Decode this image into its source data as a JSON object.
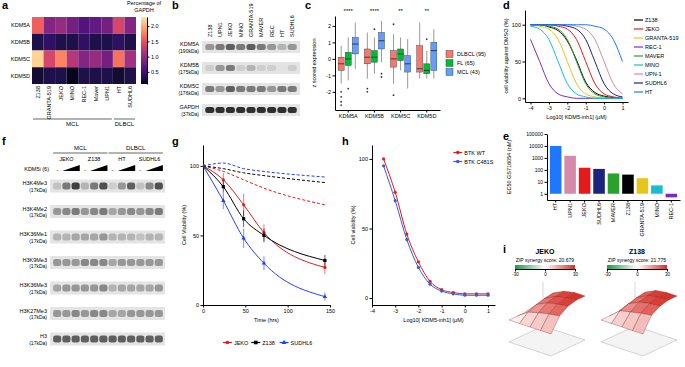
{
  "chart_data": [
    {
      "type": "heatmap",
      "panel": "a",
      "categories": [
        "Z138",
        "GRANTA-519",
        "JEKO",
        "MINO",
        "REC-1",
        "Maver",
        "UPN1",
        "HT",
        "SUDHL6"
      ],
      "rows": [
        "KDM5A",
        "KDM5B",
        "KDM5C",
        "KDM5D"
      ],
      "values": [
        [
          1.6,
          0.9,
          1.0,
          0.8,
          0.6,
          0.7,
          0.8,
          1.4,
          0.9
        ],
        [
          0.3,
          0.4,
          0.3,
          0.3,
          0.4,
          0.3,
          0.3,
          0.4,
          0.3
        ],
        [
          2.2,
          1.4,
          1.8,
          1.2,
          0.9,
          1.0,
          0.8,
          1.7,
          1.1
        ],
        [
          0.2,
          0.3,
          0.3,
          0.1,
          0.3,
          0.3,
          0.3,
          0.2,
          0.3
        ]
      ],
      "groups": [
        {
          "label": "MCL",
          "count": 7
        },
        {
          "label": "DLBCL",
          "count": 2
        }
      ],
      "colorbar": {
        "title": "Percentage of GAPDH",
        "range": [
          0.1,
          2.3
        ],
        "ticks": [
          0.5,
          {
            "value": 1,
            "label": "1.0"
          },
          1.5,
          {
            "value": 2,
            "label": "2.0"
          }
        ]
      }
    },
    {
      "type": "blot",
      "panel": "b",
      "categories": [
        "Z138",
        "UPN1",
        "JEKO",
        "MINO",
        "GRANTA-519",
        "MAVER",
        "REC",
        "HT",
        "SUDHL6"
      ],
      "series": [
        {
          "name": "KDM5A",
          "mw": "(190kDa)",
          "values": [
            0.5,
            0.6,
            0.7,
            0.6,
            0.7,
            0.6,
            0.5,
            0.4,
            0.5
          ]
        },
        {
          "name": "KDM5B",
          "mw": "(175kDa)",
          "values": [
            0.3,
            0.5,
            0.6,
            0.3,
            0.4,
            0.3,
            0.3,
            0.2,
            0.3
          ]
        },
        {
          "name": "KDM5C",
          "mw": "(176kDa)",
          "values": [
            0.6,
            0.5,
            0.7,
            0.6,
            0.6,
            0.6,
            0.5,
            0.6,
            0.6
          ]
        },
        {
          "name": "GAPDH",
          "mw": "(37kDa)",
          "values": [
            0.85,
            0.85,
            0.85,
            0.85,
            0.85,
            0.85,
            0.85,
            0.85,
            0.85
          ]
        }
      ]
    },
    {
      "type": "box",
      "panel": "c",
      "categories": [
        "KDM5A",
        "KDM5B",
        "KDM5C",
        "KDM5D"
      ],
      "annotations": [
        "****",
        "****",
        "**",
        "**"
      ],
      "y_label": "z scored expression",
      "ylim": [
        -3.1,
        2.6
      ],
      "yticks": [
        -2,
        -1,
        0,
        1,
        2
      ],
      "legend": "right",
      "series": [
        {
          "name": "DLBCL (95)",
          "color": "#f8766d",
          "values": [
            -0.3,
            0.1,
            0.0,
            -0.6
          ],
          "q1": [
            -0.7,
            -0.3,
            -0.5,
            -0.8
          ],
          "q3": [
            0.1,
            0.6,
            0.5,
            0.8
          ],
          "whisker_low": [
            -1.5,
            -1.2,
            -1.5,
            -1.2
          ],
          "whisker_high": [
            0.8,
            1.6,
            1.5,
            2.2
          ],
          "outliers": [
            [
              -2.0,
              -2.3,
              -2.6,
              -2.8
            ],
            [
              -1.8,
              -2.0
            ],
            [
              2.1,
              -2.2
            ],
            []
          ]
        },
        {
          "name": "FL (65)",
          "color": "#00ba38",
          "values": [
            0.0,
            0.1,
            0.3,
            -0.7
          ],
          "q1": [
            -0.4,
            -0.2,
            -0.1,
            -0.9
          ],
          "q3": [
            0.4,
            0.5,
            0.6,
            -0.3
          ],
          "whisker_low": [
            -1.3,
            -0.9,
            -0.7,
            -1.2
          ],
          "whisker_high": [
            1.3,
            1.3,
            1.3,
            0.5
          ],
          "outliers": [
            [
              -1.8
            ],
            [
              1.8
            ],
            [],
            [
              1.2
            ]
          ]
        },
        {
          "name": "MCL (43)",
          "color": "#619cff",
          "values": [
            0.9,
            1.1,
            -0.3,
            0.5
          ],
          "q1": [
            0.3,
            0.6,
            -0.8,
            -0.7
          ],
          "q3": [
            1.3,
            1.6,
            0.2,
            1.0
          ],
          "whisker_low": [
            -0.6,
            -0.2,
            -1.8,
            -1.2
          ],
          "whisker_high": [
            2.2,
            2.3,
            1.2,
            1.8
          ],
          "outliers": [
            [],
            [
              -0.9,
              -1.1
            ],
            [],
            []
          ]
        }
      ]
    },
    {
      "type": "line",
      "panel": "d",
      "x": [
        -4,
        -3.5,
        -3,
        -2.5,
        -2,
        -1.5,
        -1,
        -0.5,
        0,
        0.5,
        1
      ],
      "x_label": "Log10[ KDM5-inh1] (μM)",
      "y_label": "cell viability against DMSO (%)",
      "xlim": [
        -4.3,
        1.3
      ],
      "xticks": [
        -4,
        -3,
        -2,
        -1,
        0,
        1
      ],
      "ylim": [
        -5,
        120
      ],
      "yticks": [
        0,
        50,
        100
      ],
      "legend": "right",
      "series": [
        {
          "name": "Z138",
          "color": "#000000",
          "values": [
            100,
            100,
            97,
            92,
            78,
            52,
            22,
            8,
            3,
            1,
            0
          ]
        },
        {
          "name": "JEKO",
          "color": "#e41a1c",
          "values": [
            100,
            100,
            100,
            98,
            94,
            80,
            50,
            20,
            6,
            2,
            0
          ]
        },
        {
          "name": "GRANTA-519",
          "color": "#e6c619",
          "values": [
            100,
            98,
            94,
            80,
            50,
            20,
            6,
            2,
            0,
            0,
            0
          ]
        },
        {
          "name": "REC-1",
          "color": "#7b2cbf",
          "values": [
            80,
            50,
            20,
            6,
            2,
            0,
            0,
            0,
            0,
            0,
            0
          ]
        },
        {
          "name": "MAVER",
          "color": "#2ca02c",
          "values": [
            100,
            100,
            98,
            94,
            80,
            50,
            20,
            6,
            2,
            0,
            0
          ]
        },
        {
          "name": "MINO",
          "color": "#17becf",
          "values": [
            98,
            94,
            80,
            50,
            20,
            6,
            2,
            0,
            0,
            0,
            0
          ]
        },
        {
          "name": "UPN-1",
          "color": "#d48aa8",
          "values": [
            100,
            100,
            100,
            100,
            100,
            98,
            94,
            80,
            50,
            20,
            6
          ]
        },
        {
          "name": "SUDHL6",
          "color": "#1a237e",
          "values": [
            100,
            100,
            100,
            100,
            98,
            94,
            80,
            50,
            20,
            6,
            2
          ]
        },
        {
          "name": "HT",
          "color": "#1f77ff",
          "values": [
            100,
            100,
            100,
            100,
            100,
            100,
            100,
            98,
            94,
            80,
            50
          ]
        }
      ]
    },
    {
      "type": "bar",
      "panel": "e",
      "categories": [
        "HT",
        "UPN1",
        "JEKO",
        "SUDHL6",
        "MAVER",
        "Z138",
        "GRANTA-519",
        "MINO",
        "REC-1"
      ],
      "values": [
        10000,
        1500,
        150,
        120,
        50,
        40,
        20,
        5,
        0.5
      ],
      "colors": [
        "#1f77ff",
        "#d48aa8",
        "#e41a1c",
        "#1a237e",
        "#2ca02c",
        "#000000",
        "#e6c619",
        "#17becf",
        "#7b2cbf"
      ],
      "y_label": "EC50 GS716054 (nM)",
      "log": "y",
      "ylim": [
        0.3,
        100000
      ],
      "yticks": [
        1,
        10,
        100,
        1000,
        10000,
        100000
      ]
    },
    {
      "type": "blot",
      "panel": "f",
      "groups": [
        {
          "label": "MCL",
          "count": 2
        },
        {
          "label": "DLBCL",
          "count": 2
        }
      ],
      "categories": [
        "JEKO",
        "Z138",
        "HT",
        "SUDHL6"
      ],
      "treatment": {
        "label": "KDM5i (6)",
        "control": "-"
      },
      "series": [
        {
          "name": "H3K4Me3",
          "mw": "(17kDa)",
          "values": [
            [
              0.35,
              0.6,
              0.8
            ],
            [
              0.4,
              0.6,
              0.75
            ],
            [
              0.3,
              0.5,
              0.7
            ],
            [
              0.35,
              0.55,
              0.75
            ]
          ]
        },
        {
          "name": "H3K4Me2",
          "mw": "(17kDa)",
          "values": [
            [
              0.5,
              0.55,
              0.6
            ],
            [
              0.5,
              0.55,
              0.6
            ],
            [
              0.45,
              0.5,
              0.55
            ],
            [
              0.5,
              0.55,
              0.6
            ]
          ]
        },
        {
          "name": "H3K36Me1",
          "mw": "(17kDa)",
          "values": [
            [
              0.4,
              0.4,
              0.45
            ],
            [
              0.45,
              0.45,
              0.5
            ],
            [
              0.4,
              0.4,
              0.4
            ],
            [
              0.35,
              0.4,
              0.4
            ]
          ]
        },
        {
          "name": "H3K9Me3",
          "mw": "(17kDa)",
          "values": [
            [
              0.5,
              0.5,
              0.5
            ],
            [
              0.55,
              0.55,
              0.55
            ],
            [
              0.45,
              0.5,
              0.5
            ],
            [
              0.5,
              0.5,
              0.5
            ]
          ]
        },
        {
          "name": "H3K36Me3",
          "mw": "(17kDa)",
          "values": [
            [
              0.45,
              0.5,
              0.5
            ],
            [
              0.5,
              0.5,
              0.55
            ],
            [
              0.4,
              0.45,
              0.45
            ],
            [
              0.45,
              0.45,
              0.5
            ]
          ]
        },
        {
          "name": "H3K27Me3",
          "mw": "(17kDa)",
          "values": [
            [
              0.5,
              0.5,
              0.55
            ],
            [
              0.5,
              0.55,
              0.55
            ],
            [
              0.45,
              0.45,
              0.5
            ],
            [
              0.5,
              0.5,
              0.5
            ]
          ]
        },
        {
          "name": "H3",
          "mw": "(17kDa)",
          "values": [
            [
              0.7,
              0.7,
              0.7
            ],
            [
              0.7,
              0.7,
              0.7
            ],
            [
              0.7,
              0.7,
              0.7
            ],
            [
              0.7,
              0.7,
              0.7
            ]
          ]
        }
      ]
    },
    {
      "type": "line",
      "panel": "g",
      "x": [
        0,
        24,
        48,
        72,
        144
      ],
      "x_label": "Time (hrs)",
      "y_label": "Cell Viability (%)",
      "xlim": [
        0,
        150
      ],
      "xticks": [
        0,
        50,
        100,
        150
      ],
      "ylim": [
        0,
        115
      ],
      "yticks": [
        0,
        50,
        100
      ],
      "legend": "bottom",
      "series": [
        {
          "name": "JEKO",
          "color": "#e41a1c",
          "marker": "circle",
          "line_style": "solid",
          "values": [
            100,
            90,
            72,
            52,
            27
          ],
          "error": [
            0,
            5,
            8,
            6,
            5
          ]
        },
        {
          "name": "Z138",
          "color": "#000000",
          "marker": "square",
          "line_style": "solid",
          "values": [
            100,
            85,
            62,
            50,
            32
          ],
          "error": [
            0,
            4,
            6,
            5,
            4
          ]
        },
        {
          "name": "SUDHL6",
          "color": "#1f3fff",
          "marker": "triangle",
          "line_style": "solid",
          "values": [
            100,
            75,
            48,
            30,
            6
          ],
          "error": [
            0,
            6,
            7,
            5,
            3
          ]
        },
        {
          "color": "#e41a1c",
          "line_style": "dashed",
          "values": [
            100,
            96,
            90,
            84,
            72
          ]
        },
        {
          "color": "#000000",
          "line_style": "dashed",
          "values": [
            100,
            98,
            95,
            93,
            88
          ]
        },
        {
          "color": "#1f3fff",
          "line_style": "dashed",
          "values": [
            100,
            102,
            98,
            96,
            92
          ]
        }
      ]
    },
    {
      "type": "line",
      "panel": "h",
      "x": [
        -3.5,
        -3,
        -2.5,
        -2,
        -1.5,
        -1,
        -0.5,
        0,
        0.5,
        1
      ],
      "x_label": "Log10[ KDM5-inh1] (μM)",
      "y_label": "Cell viability (%)",
      "xlim": [
        -4,
        1.3
      ],
      "xticks": [
        -4,
        -3,
        -2,
        -1,
        0,
        1
      ],
      "ylim": [
        -5,
        110
      ],
      "yticks": [
        0,
        50,
        100
      ],
      "legend": "top right",
      "series": [
        {
          "name": "BTK WT",
          "color": "#e41a1c",
          "marker": "circle",
          "values": [
            100,
            76,
            46,
            26,
            12,
            6,
            4,
            3,
            3,
            3
          ]
        },
        {
          "name": "BTK C481S",
          "color": "#3b5bdb",
          "marker": "circle",
          "values": [
            95,
            70,
            42,
            22,
            10,
            5,
            3,
            2,
            2,
            2
          ]
        }
      ]
    },
    {
      "type": "surface",
      "panel": "i",
      "title": "JEKO",
      "subtitle": "ZIP synergy score: 20.679",
      "z": [
        [
          0,
          0,
          0,
          0,
          0
        ],
        [
          0,
          10,
          15,
          18,
          20
        ],
        [
          0,
          14,
          22,
          25,
          27
        ],
        [
          0,
          17,
          25,
          28,
          30
        ],
        [
          0,
          19,
          27,
          30,
          30
        ]
      ],
      "colorbar": {
        "range": [
          -30,
          30
        ],
        "ticks": [
          -30,
          0,
          30
        ]
      }
    },
    {
      "type": "surface",
      "title": "Z138",
      "subtitle": "ZIP synergy score: 21.775",
      "z": [
        [
          0,
          0,
          0,
          0,
          0
        ],
        [
          0,
          12,
          16,
          19,
          21
        ],
        [
          0,
          15,
          23,
          26,
          28
        ],
        [
          0,
          18,
          26,
          29,
          30
        ],
        [
          0,
          20,
          27,
          30,
          30
        ]
      ],
      "colorbar": {
        "range": [
          -30,
          30
        ],
        "ticks": [
          -30,
          0,
          30
        ]
      }
    }
  ]
}
